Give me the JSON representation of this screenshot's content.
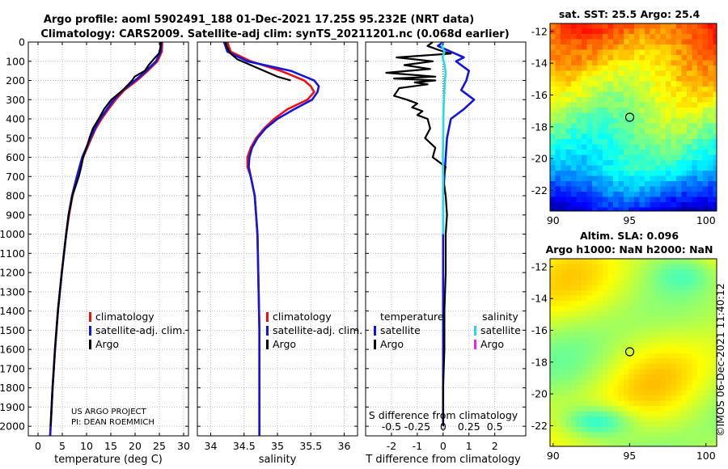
{
  "header": {
    "line1": "Argo profile: aoml 5902491_188 01-Dec-2021 17.25S 95.232E (NRT data)",
    "line2": "Climatology: CARS2009. Satellite-adj clim: synTS_20211201.nc (0.068d earlier)"
  },
  "side_label": "©IMOS 06-Dec-2021 11:40:12",
  "credits": {
    "line1": "US ARGO PROJECT",
    "line2": "PI: DEAN ROEMMICH"
  },
  "colors": {
    "red": "#ee1111",
    "blue": "#1515e0",
    "black": "#000000",
    "cyan": "#22dddd",
    "magenta": "#ee22ee",
    "grid": "#bbbbbb"
  },
  "chart_data": [
    {
      "id": "temperature",
      "type": "line",
      "xlabel": "temperature (deg C)",
      "xlim": [
        -2,
        31
      ],
      "ylim": [
        0,
        2050
      ],
      "xticks": [
        0,
        5,
        10,
        15,
        20,
        25,
        30
      ],
      "yticks": [
        0,
        100,
        200,
        300,
        400,
        500,
        600,
        700,
        800,
        900,
        1000,
        1100,
        1200,
        1300,
        1400,
        1500,
        1600,
        1700,
        1800,
        1900,
        2000
      ],
      "grid": true,
      "legend": [
        "climatology",
        "satellite-adj. clim.",
        "Argo"
      ],
      "series": [
        {
          "name": "climatology",
          "color": "red",
          "depth": [
            0,
            50,
            100,
            150,
            200,
            250,
            300,
            350,
            400,
            450,
            500,
            600,
            700,
            800,
            900,
            1000,
            1200,
            1400,
            1600,
            1800,
            2000,
            2050
          ],
          "values": [
            25.6,
            25.5,
            24.6,
            22.6,
            20.4,
            17.8,
            16.0,
            14.5,
            13.1,
            11.9,
            11.0,
            9.3,
            8.1,
            7.1,
            6.4,
            5.8,
            4.9,
            4.1,
            3.5,
            3.0,
            2.6,
            2.5
          ]
        },
        {
          "name": "satellite-adj. clim.",
          "color": "blue",
          "depth": [
            0,
            50,
            100,
            150,
            200,
            250,
            300,
            350,
            400,
            450,
            500,
            600,
            700,
            800,
            900,
            1000,
            1200,
            1400,
            1600,
            1800,
            2000,
            2050
          ],
          "values": [
            25.4,
            25.3,
            24.3,
            22.3,
            20.0,
            17.5,
            15.6,
            14.2,
            12.8,
            11.7,
            10.8,
            9.1,
            8.0,
            7.0,
            6.3,
            5.8,
            4.9,
            4.1,
            3.5,
            3.0,
            2.6,
            2.5
          ]
        },
        {
          "name": "Argo",
          "color": "black",
          "depth": [
            0,
            30,
            60,
            90,
            120,
            150,
            180,
            200,
            250,
            300,
            350,
            400,
            450,
            500,
            550,
            600,
            650,
            700,
            800,
            900,
            1000,
            1200,
            1400,
            1600,
            1800,
            2000
          ],
          "values": [
            25.3,
            25.2,
            24.9,
            23.8,
            22.8,
            22.0,
            19.9,
            19.4,
            17.5,
            15.1,
            13.6,
            12.5,
            11.3,
            10.6,
            10.0,
            9.3,
            8.9,
            8.4,
            7.1,
            6.3,
            5.8,
            4.9,
            4.1,
            3.5,
            3.0,
            2.6
          ]
        }
      ]
    },
    {
      "id": "salinity",
      "type": "line",
      "xlabel": "salinity",
      "xlim": [
        33.8,
        36.2
      ],
      "ylim": [
        0,
        2050
      ],
      "xticks": [
        34,
        34.5,
        35,
        35.5,
        36
      ],
      "grid": true,
      "legend": [
        "climatology",
        "satellite-adj. clim.",
        "Argo"
      ],
      "series": [
        {
          "name": "climatology",
          "color": "red",
          "depth": [
            0,
            50,
            100,
            150,
            200,
            230,
            260,
            300,
            350,
            400,
            450,
            500,
            550,
            600,
            650,
            700,
            800,
            1000,
            1500,
            2050
          ],
          "values": [
            34.25,
            34.3,
            34.6,
            35.05,
            35.4,
            35.5,
            35.55,
            35.45,
            35.15,
            34.95,
            34.8,
            34.68,
            34.6,
            34.55,
            34.55,
            34.6,
            34.66,
            34.7,
            34.73,
            34.73
          ]
        },
        {
          "name": "satellite-adj. clim.",
          "color": "blue",
          "depth": [
            0,
            50,
            100,
            150,
            200,
            230,
            260,
            300,
            350,
            400,
            450,
            500,
            550,
            600,
            650,
            700,
            800,
            1000,
            1500,
            2050
          ],
          "values": [
            34.2,
            34.25,
            34.55,
            35.2,
            35.55,
            35.62,
            35.6,
            35.52,
            35.25,
            35.0,
            34.82,
            34.7,
            34.62,
            34.58,
            34.57,
            34.6,
            34.66,
            34.7,
            34.73,
            34.73
          ]
        },
        {
          "name": "Argo",
          "color": "black",
          "depth": [
            0,
            30,
            60,
            90,
            120,
            150,
            180,
            200
          ],
          "values": [
            34.22,
            34.25,
            34.3,
            34.4,
            34.6,
            34.8,
            35.0,
            35.2
          ]
        }
      ]
    },
    {
      "id": "difference",
      "type": "line",
      "xlabel": "T difference from climatology",
      "xlabel_top": "S difference from climatology",
      "xlim": [
        -3,
        3.2
      ],
      "ylim": [
        0,
        2050
      ],
      "xticks": [
        -2,
        -1,
        0,
        1,
        2
      ],
      "xticks_s": [
        "-0.5",
        "-0.25",
        "0",
        "0.25",
        "0.5"
      ],
      "grid": true,
      "legend_temperature": {
        "title": "temperature",
        "items": [
          "satellite",
          "Argo"
        ]
      },
      "legend_salinity": {
        "title": "salinity",
        "items": [
          "satellite",
          "Argo"
        ]
      },
      "series": [
        {
          "name": "T satellite",
          "color": "blue",
          "depth": [
            0,
            20,
            50,
            80,
            100,
            150,
            200,
            250,
            300,
            350,
            400,
            500,
            600,
            700,
            800,
            900,
            1000,
            1200,
            1400,
            1600,
            1800,
            2000
          ],
          "values": [
            0.0,
            -0.2,
            0.3,
            0.8,
            0.5,
            1.0,
            0.9,
            0.7,
            1.2,
            0.8,
            0.3,
            0.15,
            0.1,
            0.05,
            0.0,
            0.0,
            0.0,
            0.0,
            0.0,
            0.0,
            0.0,
            0.0
          ]
        },
        {
          "name": "T Argo",
          "color": "black",
          "depth": [
            0,
            20,
            40,
            60,
            80,
            100,
            120,
            140,
            160,
            180,
            190,
            200,
            210,
            220,
            240,
            260,
            280,
            300,
            320,
            340,
            360,
            380,
            400,
            450,
            500,
            550,
            600,
            650,
            700,
            800,
            900,
            1000,
            1200,
            1400,
            1600,
            1800,
            2000
          ],
          "values": [
            -0.4,
            -0.6,
            -0.2,
            0.3,
            -1.8,
            -0.4,
            -1.5,
            -0.5,
            -2.2,
            -0.3,
            -1.9,
            -0.3,
            -1.1,
            -0.6,
            -1.7,
            -1.8,
            -1.9,
            -1.4,
            -1.0,
            -1.2,
            -0.8,
            -1.0,
            -0.6,
            -0.5,
            -0.7,
            -0.3,
            -0.4,
            0.1,
            0.0,
            0.1,
            0.15,
            0.1,
            0.1,
            0.05,
            0.05,
            0.0,
            0.0
          ]
        },
        {
          "name": "S satellite",
          "color": "cyan",
          "depth": [
            0,
            20,
            50,
            80,
            120,
            160,
            200,
            250,
            300,
            350,
            400,
            450,
            500,
            600,
            700,
            800,
            900,
            1000
          ],
          "values": [
            0.0,
            -0.05,
            0.05,
            -0.02,
            0.06,
            0.1,
            0.07,
            0.05,
            0.03,
            0.02,
            0.01,
            0.01,
            0.0,
            -0.01,
            0.0,
            0.0,
            0.0,
            0.0
          ]
        }
      ]
    }
  ],
  "maps": [
    {
      "id": "sst",
      "title": "sat. SST: 25.5 Argo: 25.4",
      "xticks": [
        "90",
        "95",
        "100"
      ],
      "yticks": [
        "-12",
        "-14",
        "-16",
        "-18",
        "-20",
        "-22"
      ],
      "lon_range": [
        89.8,
        100.7
      ],
      "lat_range": [
        -23.3,
        -11.5
      ],
      "marker": {
        "lon": 95.23,
        "lat": -17.25
      }
    },
    {
      "id": "sla",
      "title_line1": "Altim. SLA: 0.096",
      "title_line2": "Argo h1000: NaN h2000: NaN",
      "xticks": [
        "90",
        "95",
        "100"
      ],
      "yticks": [
        "-12",
        "-14",
        "-16",
        "-18",
        "-20",
        "-22"
      ],
      "lon_range": [
        89.8,
        100.7
      ],
      "lat_range": [
        -23.3,
        -11.5
      ],
      "marker": {
        "lon": 95.23,
        "lat": -17.25
      }
    }
  ]
}
